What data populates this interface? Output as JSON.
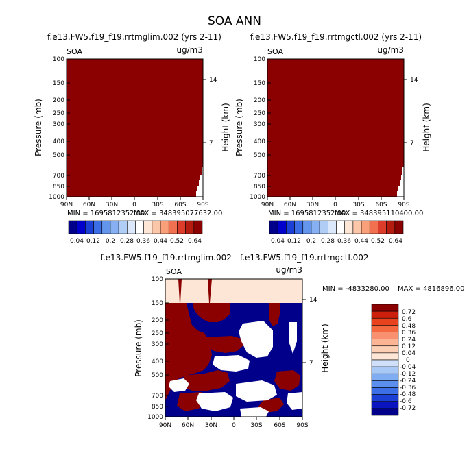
{
  "page_title": "SOA ANN",
  "colors": {
    "dark_red": "#8b0000",
    "dark_blue": "#00008b",
    "light_peach": "#fde6d6",
    "white": "#ffffff",
    "seq_scale": [
      "#00008b",
      "#0000cd",
      "#1c3fd6",
      "#3c6ee6",
      "#6495ed",
      "#87b0f2",
      "#b0cdf6",
      "#dbe7fb",
      "#ffffff",
      "#fde6d6",
      "#fcc6a9",
      "#f9a07b",
      "#f0704f",
      "#dc3d2a",
      "#b51c10",
      "#8b0000"
    ],
    "diff_scale": [
      "#00008b",
      "#0a14c0",
      "#1c3fd6",
      "#3c6ee6",
      "#5b8fed",
      "#80acf2",
      "#a8c8f6",
      "#d0e0fb",
      "#fde6d6",
      "#fdd0b6",
      "#fbb494",
      "#f99070",
      "#f4683f",
      "#e8421f",
      "#cc200c",
      "#8b0000"
    ]
  },
  "chart_data": [
    {
      "id": "panel_control",
      "type": "heatmap",
      "title": "f.e13.FW5.f19_f19.rrtmglim.002 (yrs 2-11)",
      "corner_left": "SOA",
      "corner_right": "ug/m3",
      "ylabel": "Pressure (mb)",
      "y2label": "Height (km)",
      "xticks": [
        "90N",
        "60N",
        "30N",
        "0",
        "30S",
        "60S",
        "90S"
      ],
      "yticks": [
        "100",
        "150",
        "200",
        "250",
        "300",
        "400",
        "500",
        "700",
        "850",
        "1000"
      ],
      "y2ticks": [
        "14",
        "7"
      ],
      "stats": {
        "min_label": "MIN = 1695812352.00",
        "max_label": "MAX = 348395077632.00"
      },
      "fill": "saturated dark red (all values exceed top contour level)",
      "colorbar": {
        "labels": [
          "0.04",
          "0.12",
          "0.2",
          "0.28",
          "0.36",
          "0.44",
          "0.52",
          "0.64"
        ]
      }
    },
    {
      "id": "panel_experiment",
      "type": "heatmap",
      "title": "f.e13.FW5.f19_f19.rrtmgctl.002 (yrs 2-11)",
      "corner_left": "SOA",
      "corner_right": "ug/m3",
      "ylabel": "Pressure (mb)",
      "y2label": "Height (km)",
      "xticks": [
        "90N",
        "60N",
        "30N",
        "0",
        "30S",
        "60S",
        "90S"
      ],
      "yticks": [
        "100",
        "150",
        "200",
        "250",
        "300",
        "400",
        "500",
        "700",
        "850",
        "1000"
      ],
      "y2ticks": [
        "14",
        "7"
      ],
      "stats": {
        "min_label": "MIN = 1695812352.00",
        "max_label": "MAX = 348395110400.00"
      },
      "fill": "saturated dark red (all values exceed top contour level)",
      "colorbar": {
        "labels": [
          "0.04",
          "0.12",
          "0.2",
          "0.28",
          "0.36",
          "0.44",
          "0.52",
          "0.64"
        ]
      }
    },
    {
      "id": "panel_difference",
      "type": "heatmap",
      "title": "f.e13.FW5.f19_f19.rrtmglim.002 - f.e13.FW5.f19_f19.rrtmgctl.002",
      "corner_left": "SOA",
      "corner_right": "ug/m3",
      "ylabel": "Pressure (mb)",
      "y2label": "Height (km)",
      "xticks": [
        "90N",
        "60N",
        "30N",
        "0",
        "30S",
        "60S",
        "90S"
      ],
      "yticks": [
        "100",
        "150",
        "200",
        "250",
        "300",
        "400",
        "500",
        "700",
        "850",
        "1000"
      ],
      "y2ticks": [
        "14",
        "7"
      ],
      "stats": {
        "min_label": "MIN = -4833280.00",
        "max_label": "MAX = 4816896.00"
      },
      "fill": "near-zero (light peach) above 150 mb; alternating dark red / dark blue / white blobs below 150 mb",
      "colorbar": {
        "labels": [
          "0.72",
          "0.6",
          "0.48",
          "0.36",
          "0.24",
          "0.12",
          "0.04",
          "0",
          "-0.04",
          "-0.12",
          "-0.24",
          "-0.36",
          "-0.48",
          "-0.6",
          "-0.72"
        ]
      }
    }
  ]
}
